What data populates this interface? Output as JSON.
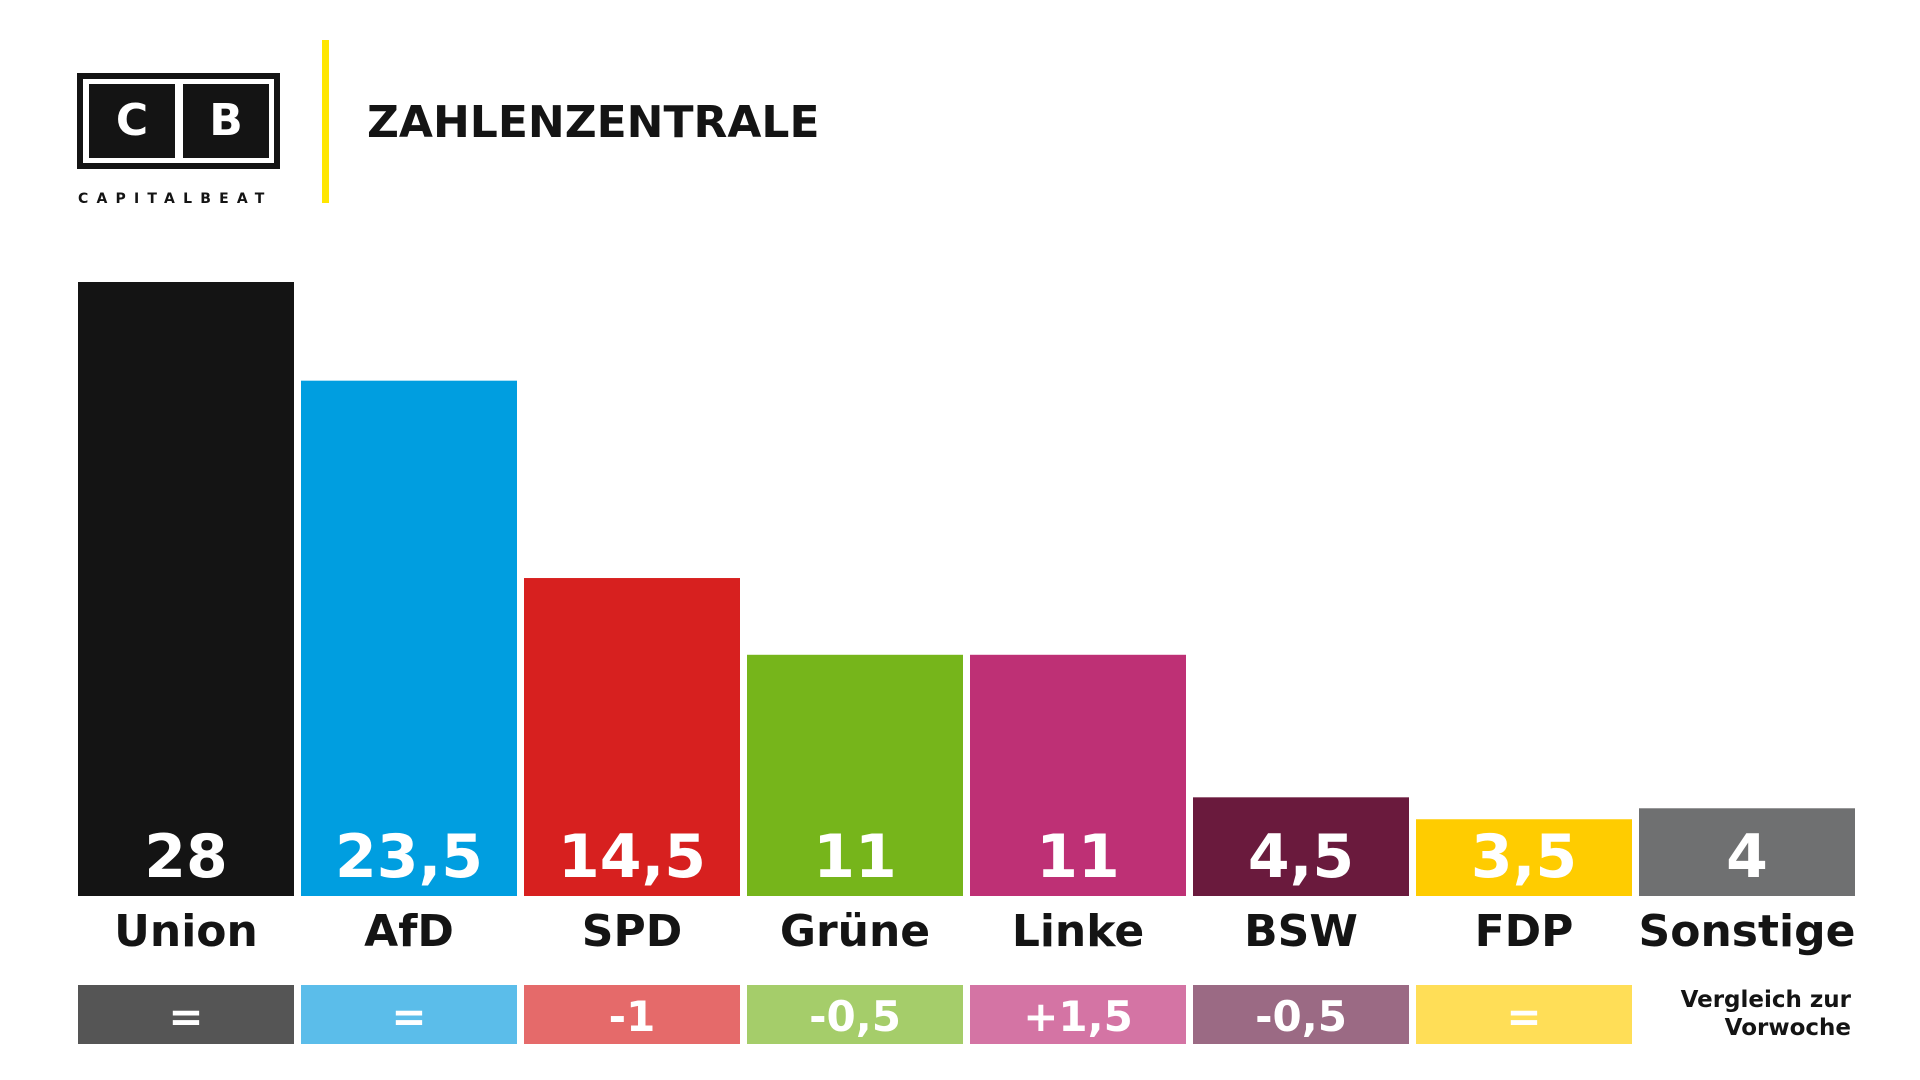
{
  "header": {
    "logo_letters": [
      "C",
      "B"
    ],
    "logo_name": "CAPITALBEAT",
    "title": "ZAHLENZENTRALE"
  },
  "chart_data": {
    "type": "bar",
    "categories": [
      "Union",
      "AfD",
      "SPD",
      "Grüne",
      "Linke",
      "BSW",
      "FDP",
      "Sonstige"
    ],
    "values": [
      28,
      23.5,
      14.5,
      11,
      11,
      4.5,
      3.5,
      4
    ],
    "value_labels": [
      "28",
      "23,5",
      "14,5",
      "11",
      "11",
      "4,5",
      "3,5",
      "4"
    ],
    "colors": [
      "#141414",
      "#009ee0",
      "#d7201f",
      "#76b51b",
      "#be3075",
      "#6a1a3d",
      "#ffcc00",
      "#6f7071"
    ],
    "changes": [
      "=",
      "=",
      "-1",
      "-0,5",
      "+1,5",
      "-0,5",
      "=",
      null
    ],
    "change_colors": [
      "#555555",
      "#5bbdea",
      "#e56a6a",
      "#a5cd6a",
      "#d474a4",
      "#9b6a84",
      "#ffde57",
      null
    ],
    "changes_note": [
      "Vergleich zur",
      "Vorwoche"
    ]
  }
}
